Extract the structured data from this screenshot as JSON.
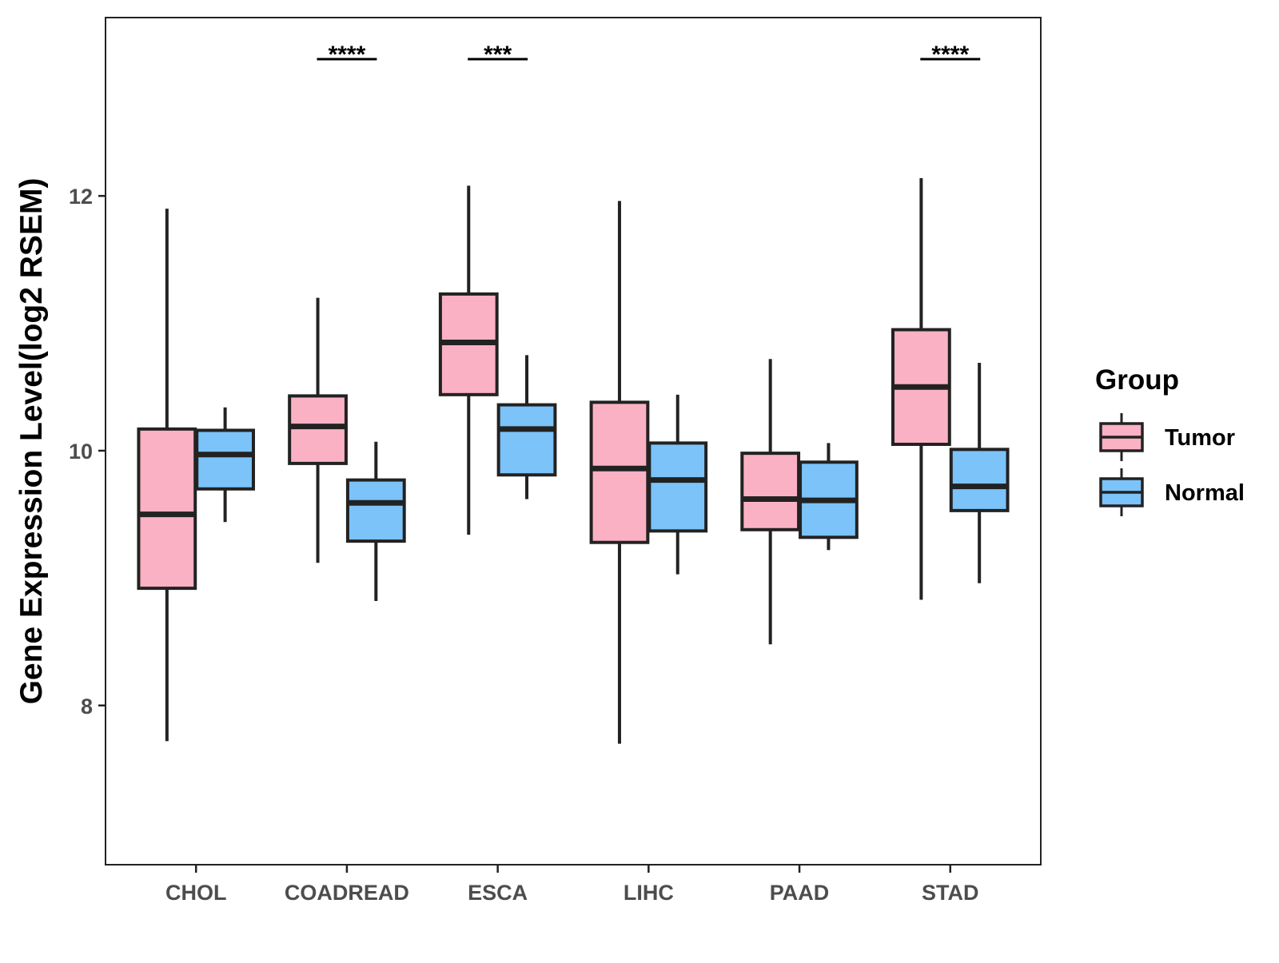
{
  "chart_data": {
    "type": "boxplot",
    "title": "",
    "xlabel": "",
    "ylabel": "Gene Expression Level(log2 RSEM)",
    "ylim": [
      6.75,
      13.4
    ],
    "yticks": [
      8,
      10,
      12
    ],
    "grid": false,
    "legend_placement": "right",
    "legend_title": "Group",
    "categories": [
      "CHOL",
      "COADREAD",
      "ESCA",
      "LIHC",
      "PAAD",
      "STAD"
    ],
    "series": [
      {
        "name": "Tumor",
        "color": "#FBB1C4",
        "boxes": [
          {
            "min": 7.72,
            "q1": 8.92,
            "median": 9.5,
            "q3": 10.17,
            "max": 11.9
          },
          {
            "min": 9.12,
            "q1": 9.9,
            "median": 10.19,
            "q3": 10.43,
            "max": 11.2
          },
          {
            "min": 9.34,
            "q1": 10.44,
            "median": 10.85,
            "q3": 11.23,
            "max": 12.08
          },
          {
            "min": 7.7,
            "q1": 9.28,
            "median": 9.86,
            "q3": 10.38,
            "max": 11.96
          },
          {
            "min": 8.48,
            "q1": 9.38,
            "median": 9.62,
            "q3": 9.98,
            "max": 10.72
          },
          {
            "min": 8.83,
            "q1": 10.05,
            "median": 10.5,
            "q3": 10.95,
            "max": 12.14
          }
        ]
      },
      {
        "name": "Normal",
        "color": "#7BC3F9",
        "boxes": [
          {
            "min": 9.44,
            "q1": 9.7,
            "median": 9.97,
            "q3": 10.16,
            "max": 10.34
          },
          {
            "min": 8.82,
            "q1": 9.29,
            "median": 9.59,
            "q3": 9.77,
            "max": 10.07
          },
          {
            "min": 9.62,
            "q1": 9.81,
            "median": 10.17,
            "q3": 10.36,
            "max": 10.75
          },
          {
            "min": 9.03,
            "q1": 9.37,
            "median": 9.77,
            "q3": 10.06,
            "max": 10.44
          },
          {
            "min": 9.22,
            "q1": 9.32,
            "median": 9.61,
            "q3": 9.91,
            "max": 10.06
          },
          {
            "min": 8.96,
            "q1": 9.53,
            "median": 9.72,
            "q3": 10.01,
            "max": 10.69
          }
        ]
      }
    ],
    "significance": [
      {
        "category": "COADREAD",
        "label": "****"
      },
      {
        "category": "ESCA",
        "label": "***"
      },
      {
        "category": "STAD",
        "label": "****"
      }
    ],
    "box_edge_color": "#222222",
    "axis_color": "#222222"
  }
}
